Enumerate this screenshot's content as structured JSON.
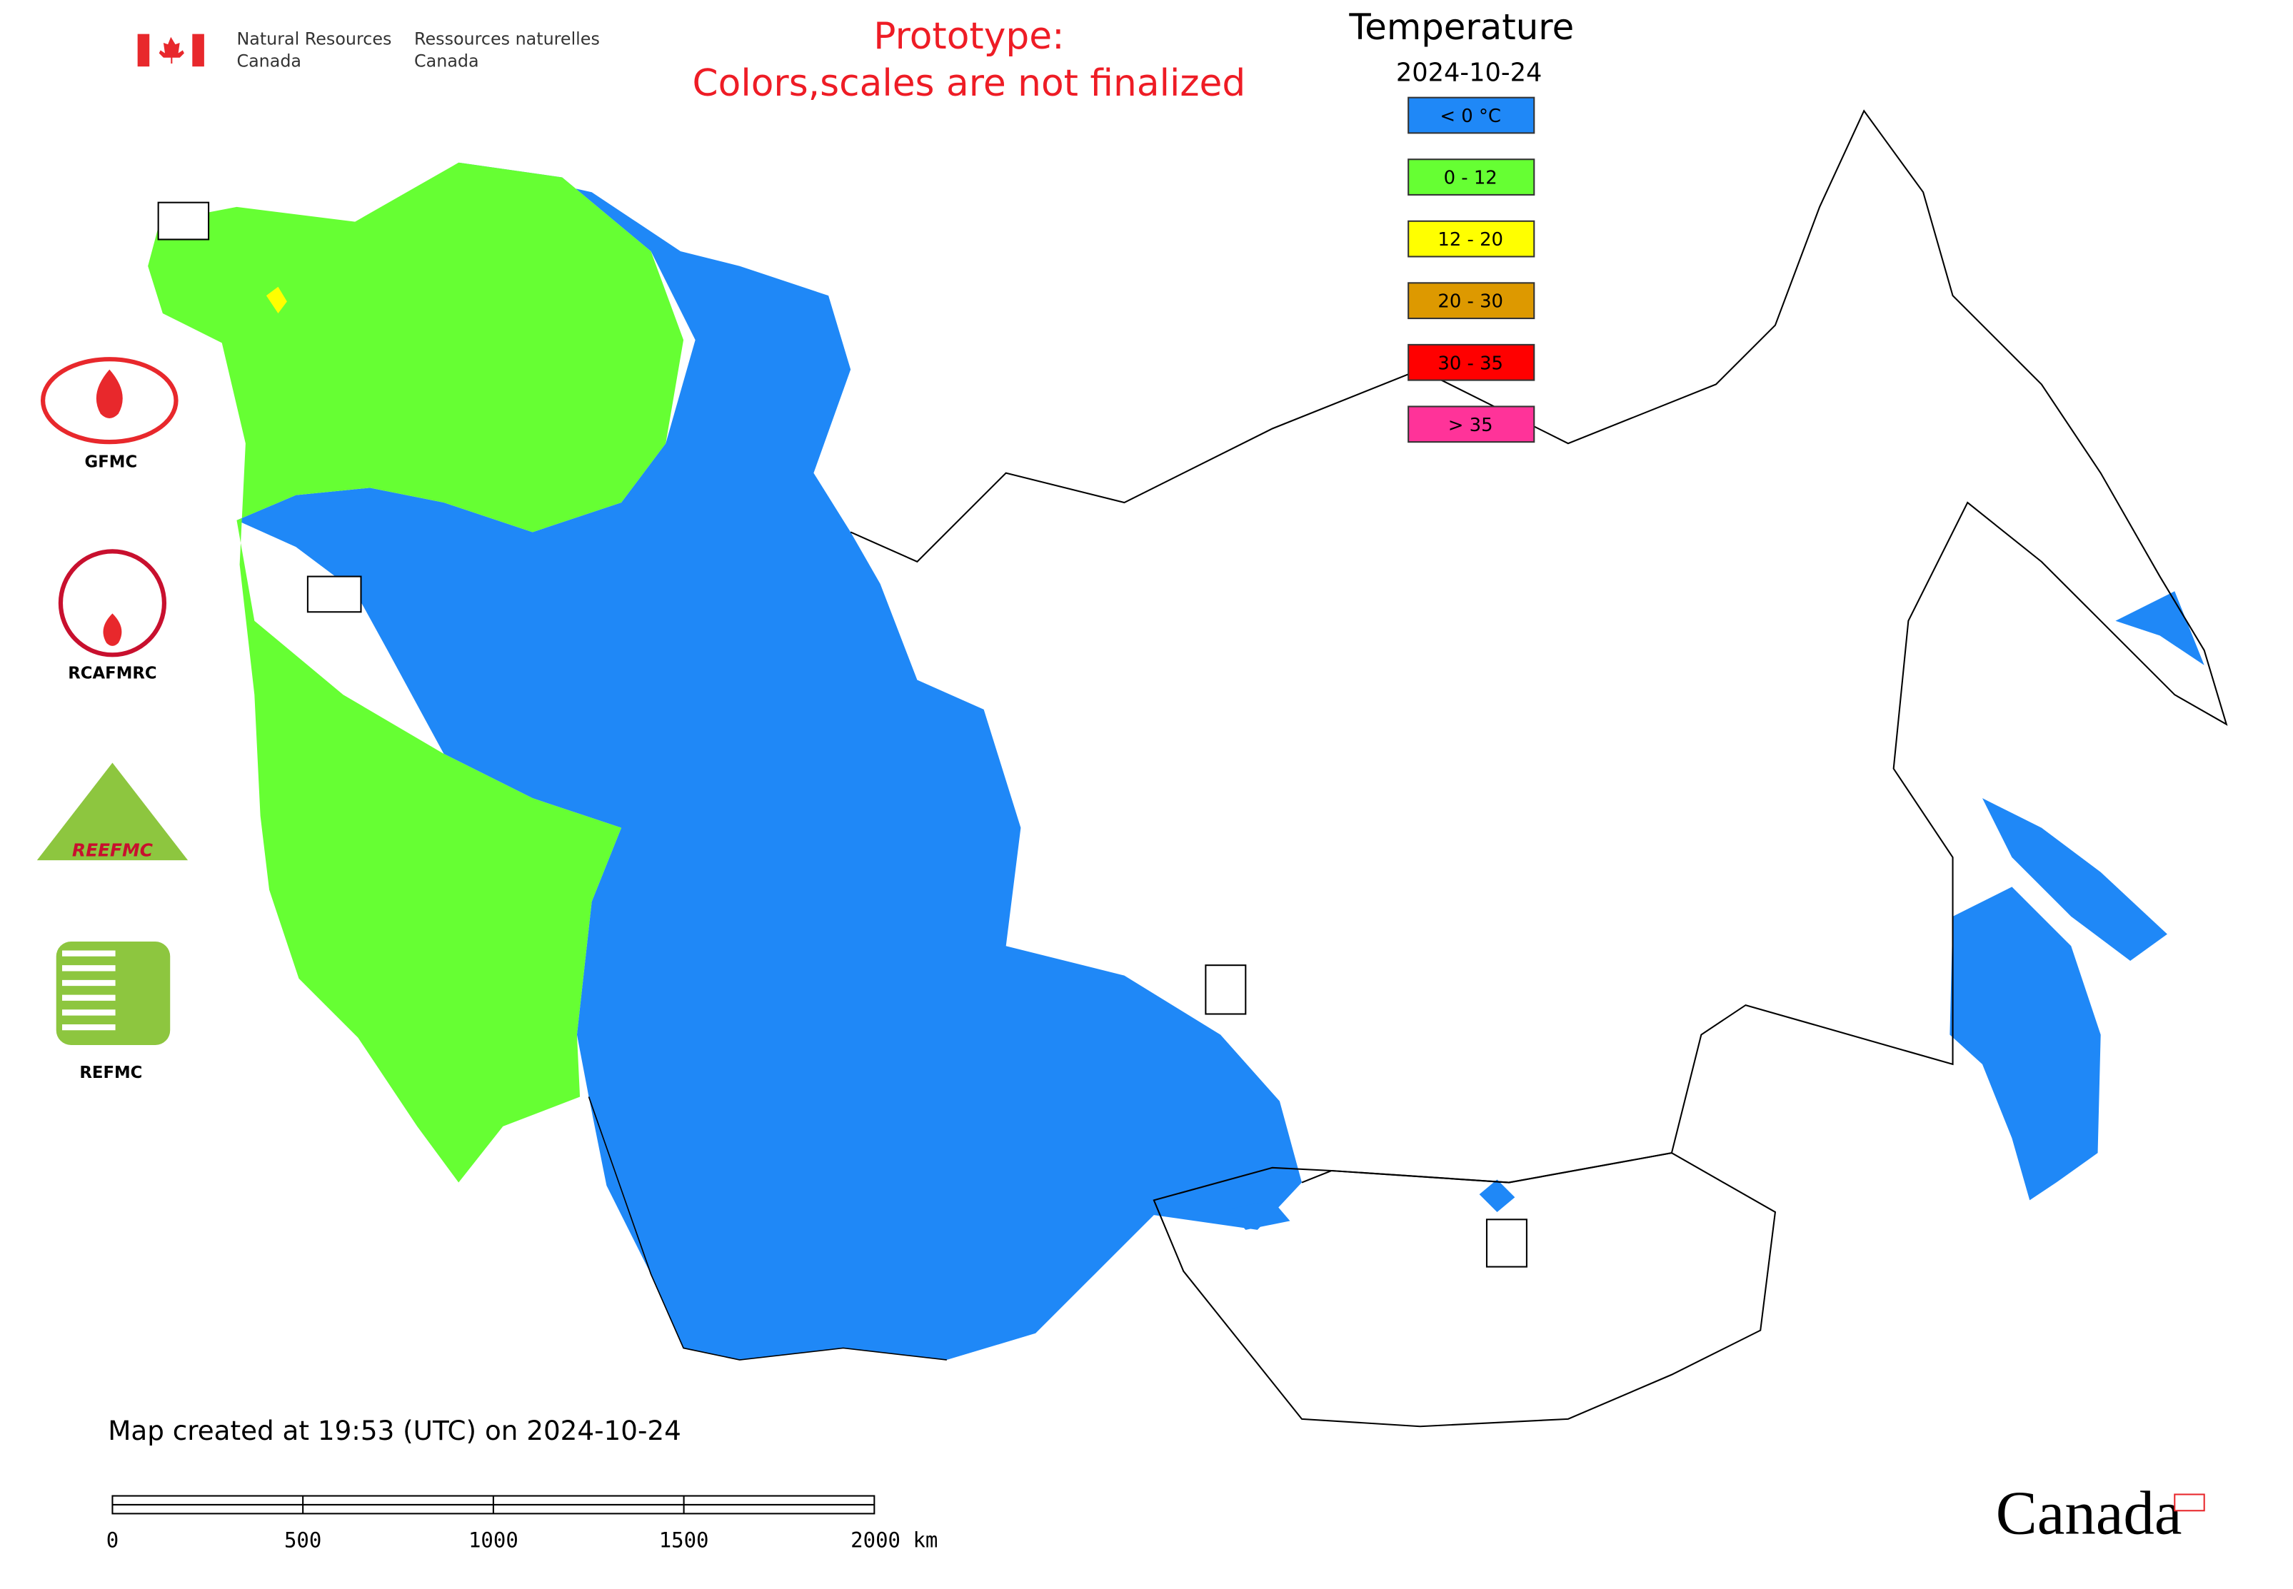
{
  "header": {
    "agency_en": [
      "Natural Resources",
      "Canada"
    ],
    "agency_fr": [
      "Ressources naturelles",
      "Canada"
    ],
    "notice": [
      "Prototype:",
      "Colors,scales are not finalized"
    ]
  },
  "legend": {
    "title": "Temperature",
    "date": "2024-10-24",
    "items": [
      {
        "label": "< 0 °C",
        "color": "#1f88f7"
      },
      {
        "label": "0 - 12",
        "color": "#66ff33"
      },
      {
        "label": "12 - 20",
        "color": "#ffff00"
      },
      {
        "label": "20 - 30",
        "color": "#dd9900"
      },
      {
        "label": "30 - 35",
        "color": "#ff0000"
      },
      {
        "label": "> 35",
        "color": "#ff3399"
      }
    ]
  },
  "logos": [
    {
      "label": "GFMC"
    },
    {
      "label": "RCAFMRC"
    },
    {
      "label": "REEFMC"
    },
    {
      "label": "REFMC"
    }
  ],
  "footer": {
    "created": "Map created at 19:53 (UTC) on 2024-10-24",
    "scale_bar": [
      "0",
      "500",
      "1000",
      "1500",
      "2000 km"
    ],
    "wordmark": "Canada"
  }
}
